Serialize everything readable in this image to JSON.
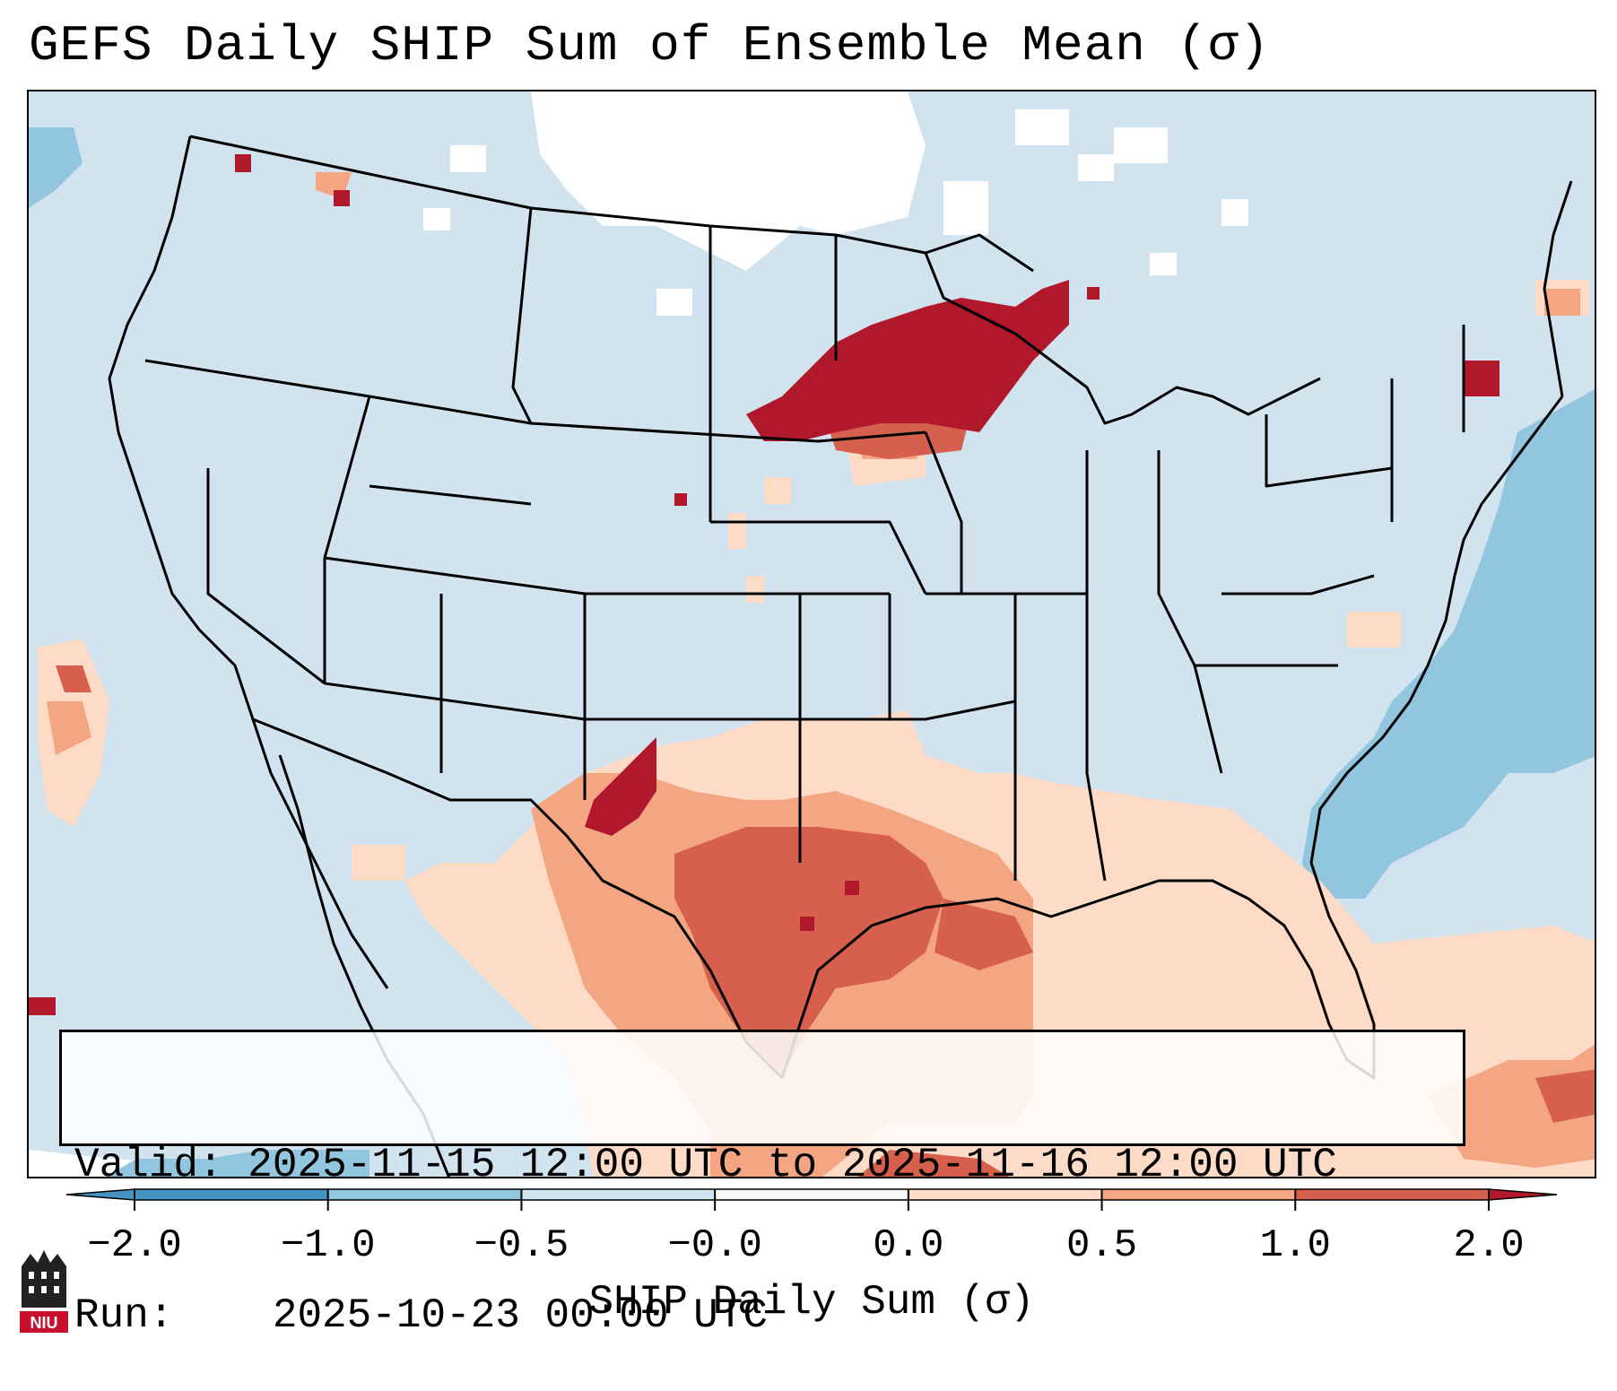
{
  "title": "GEFS Daily SHIP Sum of Ensemble Mean (σ)",
  "info": {
    "valid_label": "Valid:",
    "valid_value": "2025-11-15 12:00 UTC to 2025-11-16 12:00 UTC",
    "run_label": "Run:",
    "run_value": "2025-10-23 00:00 UTC"
  },
  "colorbar": {
    "label": "SHIP Daily Sum (σ)",
    "ticks": [
      "−2.0",
      "−1.0",
      "−0.5",
      "−0.0",
      "0.0",
      "0.5",
      "1.0",
      "2.0"
    ],
    "colors": [
      "#4393c3",
      "#92c5de",
      "#d1e5f0",
      "#f7f7f7",
      "#fddbc7",
      "#f4a582",
      "#d6604d",
      "#b2182b"
    ]
  },
  "logo": {
    "text": "NIU"
  },
  "colors": {
    "ocean_land_bg": "#d0e3ef",
    "strong_negative": "#92c5de",
    "weak_positive": "#fddbc7",
    "moderate_positive": "#f4a582",
    "strong_positive": "#d6604d",
    "extreme_positive": "#b2182b",
    "near_zero": "#ffffff"
  }
}
